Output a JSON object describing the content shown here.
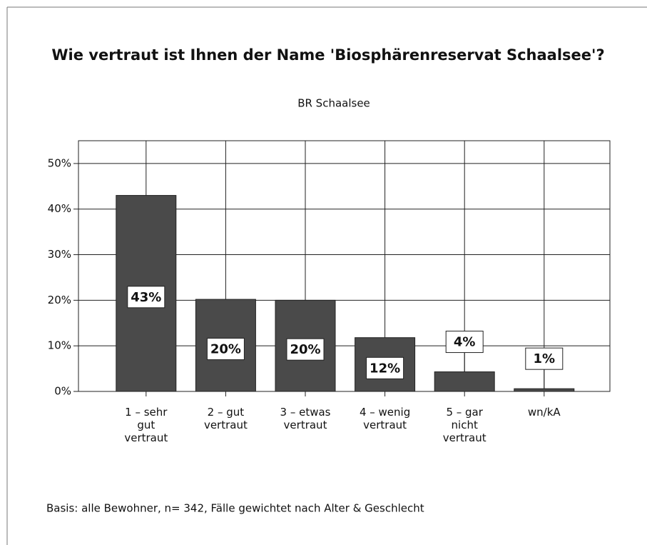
{
  "chart_data": {
    "type": "bar",
    "title": "Wie vertraut ist Ihnen der Name 'Biosphärenreservat Schaalsee'?",
    "subtitle": "BR Schaalsee",
    "footnote": "Basis: alle Bewohner, n= 342, Fälle gewichtet nach Alter & Geschlecht",
    "categories": [
      "1 – sehr\ngut\nvertraut",
      "2 – gut\nvertraut",
      "3 – etwas\nvertraut",
      "4 – wenig\nvertraut",
      "5 – gar\nnicht\nvertraut",
      "wn/kA"
    ],
    "values": [
      43,
      20.2,
      20,
      11.8,
      4.3,
      0.6
    ],
    "value_labels": [
      "43%",
      "20%",
      "20%",
      "12%",
      "4%",
      "1%"
    ],
    "color": "#4a4a4a",
    "ylim": [
      0,
      55
    ],
    "yticks": [
      {
        "value": 0,
        "label": "0%"
      },
      {
        "value": 10,
        "label": "10%"
      },
      {
        "value": 20,
        "label": "20%"
      },
      {
        "value": 30,
        "label": "30%"
      },
      {
        "value": 40,
        "label": "40%"
      },
      {
        "value": 50,
        "label": "50%"
      }
    ],
    "grid": true
  }
}
